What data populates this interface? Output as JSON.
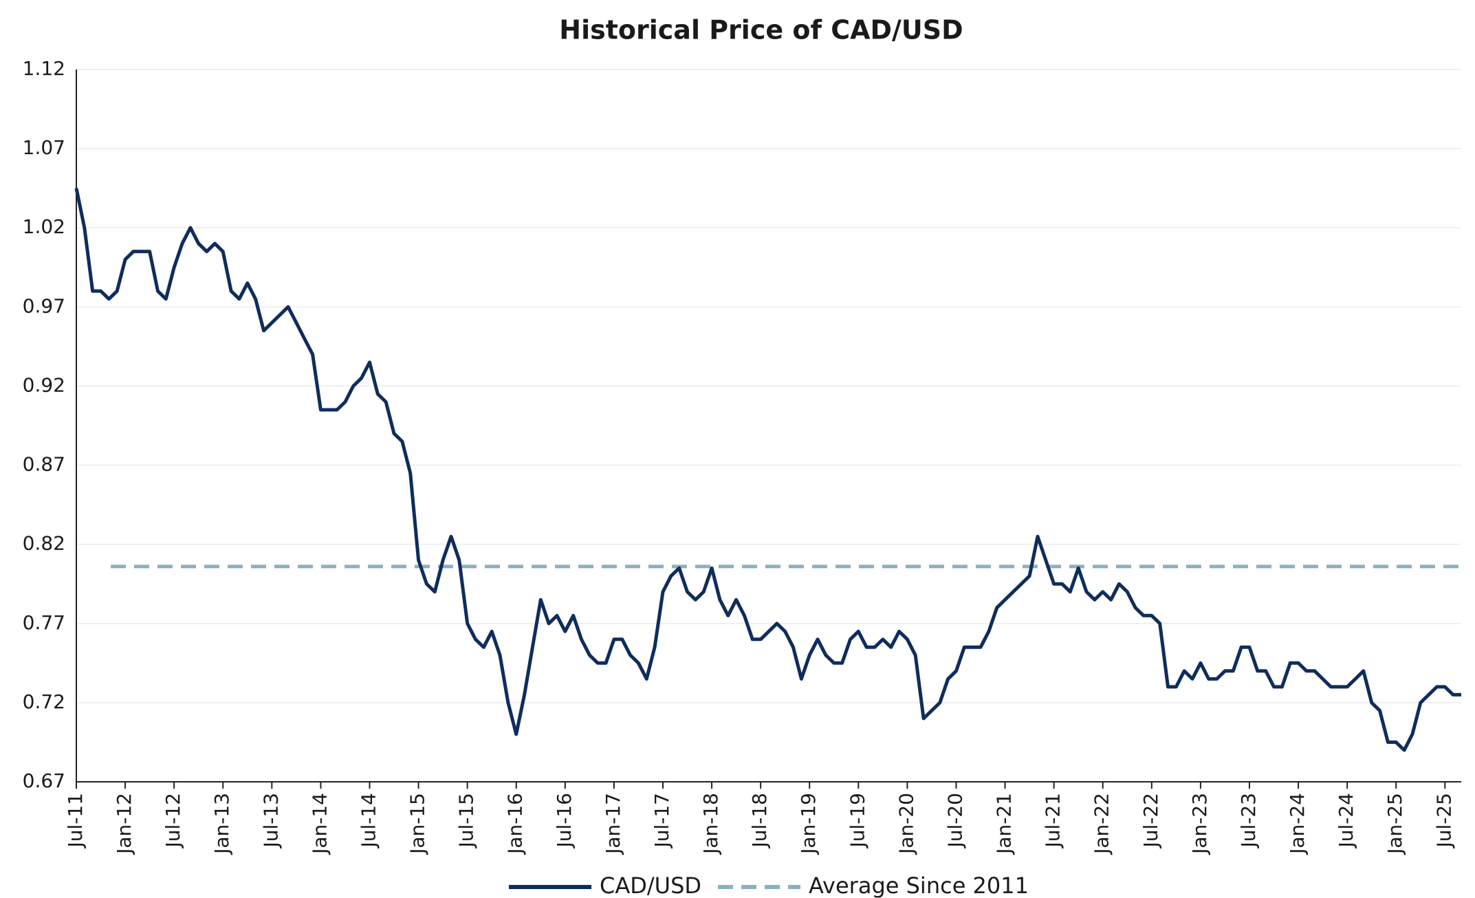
{
  "chart_data": {
    "type": "line",
    "title": "Historical Price of CAD/USD",
    "categories": [
      "Jul-11",
      null,
      null,
      null,
      null,
      null,
      "Jan-12",
      null,
      null,
      null,
      null,
      null,
      "Jul-12",
      null,
      null,
      null,
      null,
      null,
      "Jan-13",
      null,
      null,
      null,
      null,
      null,
      "Jul-13",
      null,
      null,
      null,
      null,
      null,
      "Jan-14",
      null,
      null,
      null,
      null,
      null,
      "Jul-14",
      null,
      null,
      null,
      null,
      null,
      "Jan-15",
      null,
      null,
      null,
      null,
      null,
      "Jul-15",
      null,
      null,
      null,
      null,
      null,
      "Jan-16",
      null,
      null,
      null,
      null,
      null,
      "Jul-16",
      null,
      null,
      null,
      null,
      null,
      "Jan-17",
      null,
      null,
      null,
      null,
      null,
      "Jul-17",
      null,
      null,
      null,
      null,
      null,
      "Jan-18",
      null,
      null,
      null,
      null,
      null,
      "Jul-18",
      null,
      null,
      null,
      null,
      null,
      "Jan-19",
      null,
      null,
      null,
      null,
      null,
      "Jul-19",
      null,
      null,
      null,
      null,
      null,
      "Jan-20",
      null,
      null,
      null,
      null,
      null,
      "Jul-20",
      null,
      null,
      null,
      null,
      null,
      "Jan-21",
      null,
      null,
      null,
      null,
      null,
      "Jul-21",
      null,
      null,
      null,
      null,
      null,
      "Jan-22",
      null,
      null,
      null,
      null,
      null,
      "Jul-22",
      null,
      null,
      null,
      null,
      null,
      "Jan-23",
      null,
      null,
      null,
      null,
      null,
      "Jul-23",
      null,
      null,
      null,
      null,
      null,
      "Jan-24",
      null,
      null,
      null,
      null,
      null,
      "Jul-24",
      null,
      null,
      null,
      null,
      null,
      "Jan-25",
      null,
      null,
      null,
      null,
      null,
      "Jul-25",
      null,
      null
    ],
    "series": [
      {
        "name": "CAD/USD",
        "color": "#0f2d5c",
        "values": [
          1.045,
          1.02,
          0.98,
          0.98,
          0.975,
          0.98,
          1.0,
          1.005,
          1.005,
          1.005,
          0.98,
          0.975,
          0.995,
          1.01,
          1.02,
          1.01,
          1.005,
          1.01,
          1.005,
          0.98,
          0.975,
          0.985,
          0.975,
          0.955,
          0.96,
          0.965,
          0.97,
          0.96,
          0.95,
          0.94,
          0.905,
          0.905,
          0.905,
          0.91,
          0.92,
          0.925,
          0.935,
          0.915,
          0.91,
          0.89,
          0.885,
          0.865,
          0.81,
          0.795,
          0.79,
          0.81,
          0.825,
          0.81,
          0.77,
          0.76,
          0.755,
          0.765,
          0.75,
          0.72,
          0.7,
          0.725,
          0.755,
          0.785,
          0.77,
          0.775,
          0.765,
          0.775,
          0.76,
          0.75,
          0.745,
          0.745,
          0.76,
          0.76,
          0.75,
          0.745,
          0.735,
          0.755,
          0.79,
          0.8,
          0.805,
          0.79,
          0.785,
          0.79,
          0.805,
          0.785,
          0.775,
          0.785,
          0.775,
          0.76,
          0.76,
          0.765,
          0.77,
          0.765,
          0.755,
          0.735,
          0.75,
          0.76,
          0.75,
          0.745,
          0.745,
          0.76,
          0.765,
          0.755,
          0.755,
          0.76,
          0.755,
          0.765,
          0.76,
          0.75,
          0.71,
          0.715,
          0.72,
          0.735,
          0.74,
          0.755,
          0.755,
          0.755,
          0.765,
          0.78,
          0.785,
          0.79,
          0.795,
          0.8,
          0.825,
          0.81,
          0.795,
          0.795,
          0.79,
          0.805,
          0.79,
          0.785,
          0.79,
          0.785,
          0.795,
          0.79,
          0.78,
          0.775,
          0.775,
          0.77,
          0.73,
          0.73,
          0.74,
          0.735,
          0.745,
          0.735,
          0.735,
          0.74,
          0.74,
          0.755,
          0.755,
          0.74,
          0.74,
          0.73,
          0.73,
          0.745,
          0.745,
          0.74,
          0.74,
          0.735,
          0.73,
          0.73,
          0.73,
          0.735,
          0.74,
          0.72,
          0.715,
          0.695,
          0.695,
          0.69,
          0.7,
          0.72,
          0.725,
          0.73,
          0.73,
          0.725,
          0.725
        ]
      }
    ],
    "reference_line": {
      "name": "Average Since 2011",
      "value": 0.806,
      "color": "#8aafc0",
      "dashed": true
    },
    "ylim": [
      0.67,
      1.12
    ],
    "yticks": [
      0.67,
      0.72,
      0.77,
      0.82,
      0.87,
      0.92,
      0.97,
      1.02,
      1.07,
      1.12
    ],
    "grid": true,
    "legend": "bottom"
  }
}
